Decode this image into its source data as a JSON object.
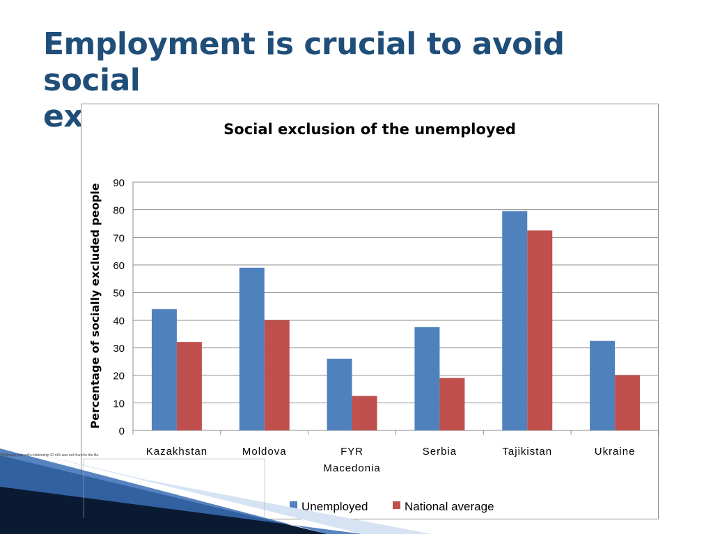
{
  "slide": {
    "title_line1": "Employment is crucial to avoid social",
    "title_line2": "exclusion",
    "broken_image_caption": "The image part with relationship ID rId1 was not found in the file."
  },
  "colors": {
    "title": "#1f4e79",
    "unemployed": "#4f81bd",
    "national_average": "#c0504d",
    "gridline": "#8c8c8c",
    "decor_dark": "#0b1a33",
    "decor_blue": "#3a6fb5"
  },
  "chart_data": {
    "type": "bar",
    "title": "Social exclusion of the unemployed",
    "ylabel": "Percentage of socially excluded people",
    "xlabel": "",
    "ylim": [
      0,
      90
    ],
    "yticks": [
      0,
      10,
      20,
      30,
      40,
      50,
      60,
      70,
      80,
      90
    ],
    "grid": true,
    "legend_position": "bottom",
    "categories": [
      [
        "Kazakhstan"
      ],
      [
        "Moldova"
      ],
      [
        "FYR",
        "Macedonia"
      ],
      [
        "Serbia"
      ],
      [
        "Tajikistan"
      ],
      [
        "Ukraine"
      ]
    ],
    "series": [
      {
        "name": "Unemployed",
        "color": "#4f81bd",
        "values": [
          44,
          59,
          26,
          37.5,
          79.5,
          32.5
        ]
      },
      {
        "name": "National average",
        "color": "#c0504d",
        "values": [
          32,
          40,
          12.5,
          19,
          72.5,
          20
        ]
      }
    ]
  }
}
